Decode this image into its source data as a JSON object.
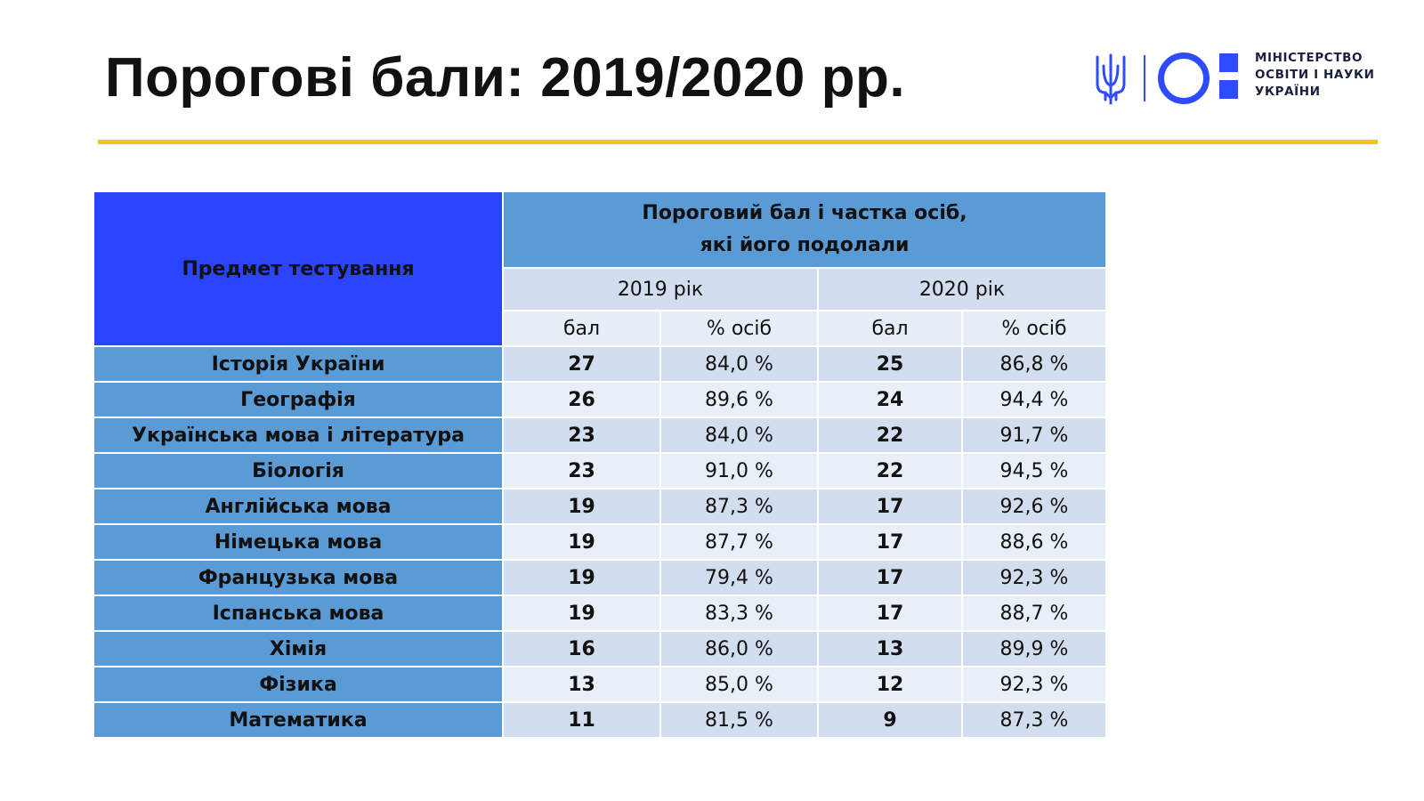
{
  "title": "Порогові бали: 2019/2020 рр.",
  "logo": {
    "line1": "МІНІСТЕРСТВО",
    "line2": "ОСВІТИ І НАУКИ",
    "line3": "УКРАЇНИ",
    "accent_color": "#2e4bff"
  },
  "table": {
    "subject_header": "Предмет тестування",
    "main_header_line1": "Пороговий бал і частка осіб,",
    "main_header_line2": "які його подолали",
    "year1": "2019 рік",
    "year2": "2020 рік",
    "col_score": "бал",
    "col_pct": "% осіб",
    "rows": [
      {
        "subject": "Історія України",
        "s2019": "27",
        "p2019": "84,0 %",
        "s2020": "25",
        "p2020": "86,8 %"
      },
      {
        "subject": "Географія",
        "s2019": "26",
        "p2019": "89,6 %",
        "s2020": "24",
        "p2020": "94,4 %"
      },
      {
        "subject": "Українська мова і література",
        "s2019": "23",
        "p2019": "84,0 %",
        "s2020": "22",
        "p2020": "91,7 %"
      },
      {
        "subject": "Біологія",
        "s2019": "23",
        "p2019": "91,0 %",
        "s2020": "22",
        "p2020": "94,5 %"
      },
      {
        "subject": "Англійська мова",
        "s2019": "19",
        "p2019": "87,3 %",
        "s2020": "17",
        "p2020": "92,6 %"
      },
      {
        "subject": "Німецька мова",
        "s2019": "19",
        "p2019": "87,7 %",
        "s2020": "17",
        "p2020": "88,6 %"
      },
      {
        "subject": "Французька мова",
        "s2019": "19",
        "p2019": "79,4 %",
        "s2020": "17",
        "p2020": "92,3 %"
      },
      {
        "subject": "Іспанська мова",
        "s2019": "19",
        "p2019": "83,3 %",
        "s2020": "17",
        "p2020": "88,7 %"
      },
      {
        "subject": "Хімія",
        "s2019": "16",
        "p2019": "86,0 %",
        "s2020": "13",
        "p2020": "89,9 %"
      },
      {
        "subject": "Фізика",
        "s2019": "13",
        "p2019": "85,0 %",
        "s2020": "12",
        "p2020": "92,3 %"
      },
      {
        "subject": "Математика",
        "s2019": "11",
        "p2019": "81,5 %",
        "s2020": "9",
        "p2020": "87,3 %"
      }
    ]
  },
  "colors": {
    "header_blue": "#2b45ff",
    "row_blue": "#5b9bd5",
    "rule_yellow": "#f2c418"
  }
}
